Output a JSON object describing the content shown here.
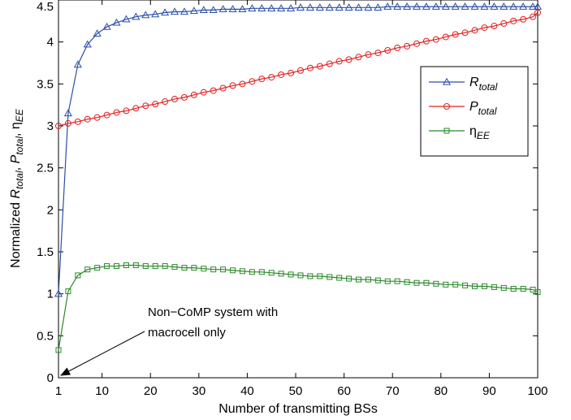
{
  "chart_data": {
    "type": "line",
    "xlabel": "Number of transmitting BSs",
    "ylabel": {
      "prefix": "Normalized ",
      "r_base": "R",
      "r_sub": "total",
      "sep1": ", ",
      "p_base": "P",
      "p_sub": "total",
      "sep2": ", ",
      "eta_base": "η",
      "eta_sub": "EE"
    },
    "xlim": [
      1,
      100
    ],
    "ylim": [
      0,
      4.5
    ],
    "xticks": [
      1,
      10,
      20,
      30,
      40,
      50,
      60,
      70,
      80,
      90,
      100
    ],
    "yticks": [
      0,
      0.5,
      1,
      1.5,
      2,
      2.5,
      3,
      3.5,
      4,
      4.5
    ],
    "ytick_labels": [
      "0",
      "0.5",
      "1",
      "1.5",
      "2",
      "2.5",
      "3",
      "3.5",
      "4",
      "4.5"
    ],
    "grid": false,
    "legend_position": "right",
    "series": [
      {
        "key": "R",
        "label_base": "R",
        "label_sub": "total",
        "color": "#2b4ea8",
        "marker": "triangle",
        "x": [
          1,
          3,
          5,
          7,
          9,
          11,
          13,
          15,
          17,
          19,
          21,
          23,
          25,
          27,
          29,
          31,
          33,
          35,
          37,
          39,
          41,
          43,
          45,
          47,
          49,
          51,
          53,
          55,
          57,
          59,
          61,
          63,
          65,
          67,
          69,
          71,
          73,
          75,
          77,
          79,
          81,
          83,
          85,
          87,
          89,
          91,
          93,
          95,
          97,
          99,
          100
        ],
        "values": [
          1.0,
          3.15,
          3.73,
          3.97,
          4.1,
          4.18,
          4.23,
          4.27,
          4.3,
          4.32,
          4.33,
          4.35,
          4.36,
          4.36,
          4.37,
          4.38,
          4.38,
          4.39,
          4.39,
          4.39,
          4.4,
          4.4,
          4.4,
          4.4,
          4.4,
          4.41,
          4.41,
          4.41,
          4.41,
          4.41,
          4.41,
          4.41,
          4.41,
          4.41,
          4.42,
          4.42,
          4.42,
          4.42,
          4.42,
          4.42,
          4.42,
          4.42,
          4.42,
          4.42,
          4.42,
          4.42,
          4.42,
          4.42,
          4.42,
          4.42,
          4.42
        ]
      },
      {
        "key": "P",
        "label_base": "P",
        "label_sub": "total",
        "color": "#e02020",
        "marker": "circle",
        "x": [
          1,
          3,
          5,
          7,
          9,
          11,
          13,
          15,
          17,
          19,
          21,
          23,
          25,
          27,
          29,
          31,
          33,
          35,
          37,
          39,
          41,
          43,
          45,
          47,
          49,
          51,
          53,
          55,
          57,
          59,
          61,
          63,
          65,
          67,
          69,
          71,
          73,
          75,
          77,
          79,
          81,
          83,
          85,
          87,
          89,
          91,
          93,
          95,
          97,
          99,
          100
        ],
        "values": [
          3.0,
          3.03,
          3.05,
          3.08,
          3.1,
          3.13,
          3.16,
          3.18,
          3.21,
          3.24,
          3.26,
          3.29,
          3.32,
          3.34,
          3.37,
          3.4,
          3.42,
          3.45,
          3.48,
          3.5,
          3.53,
          3.56,
          3.58,
          3.61,
          3.63,
          3.66,
          3.69,
          3.71,
          3.74,
          3.77,
          3.79,
          3.82,
          3.85,
          3.87,
          3.9,
          3.93,
          3.95,
          3.98,
          4.01,
          4.03,
          4.06,
          4.09,
          4.11,
          4.14,
          4.17,
          4.19,
          4.22,
          4.25,
          4.27,
          4.3,
          4.35
        ]
      },
      {
        "key": "EE",
        "label_base": "η",
        "label_sub": "EE",
        "color": "#2a8a2a",
        "marker": "square",
        "x": [
          1,
          3,
          5,
          7,
          9,
          11,
          13,
          15,
          17,
          19,
          21,
          23,
          25,
          27,
          29,
          31,
          33,
          35,
          37,
          39,
          41,
          43,
          45,
          47,
          49,
          51,
          53,
          55,
          57,
          59,
          61,
          63,
          65,
          67,
          69,
          71,
          73,
          75,
          77,
          79,
          81,
          83,
          85,
          87,
          89,
          91,
          93,
          95,
          97,
          99,
          100
        ],
        "values": [
          0.33,
          1.03,
          1.22,
          1.29,
          1.31,
          1.33,
          1.33,
          1.34,
          1.34,
          1.33,
          1.33,
          1.33,
          1.32,
          1.31,
          1.31,
          1.3,
          1.29,
          1.29,
          1.28,
          1.27,
          1.26,
          1.26,
          1.25,
          1.24,
          1.23,
          1.22,
          1.21,
          1.21,
          1.2,
          1.19,
          1.18,
          1.17,
          1.17,
          1.16,
          1.15,
          1.15,
          1.14,
          1.13,
          1.13,
          1.12,
          1.11,
          1.11,
          1.1,
          1.09,
          1.09,
          1.08,
          1.07,
          1.06,
          1.06,
          1.05,
          1.02
        ]
      }
    ],
    "annotations": [
      {
        "lines": [
          "Non−CoMP system with",
          "macrocell only"
        ],
        "arrow_to": {
          "x": 1,
          "y": 0
        }
      }
    ]
  }
}
